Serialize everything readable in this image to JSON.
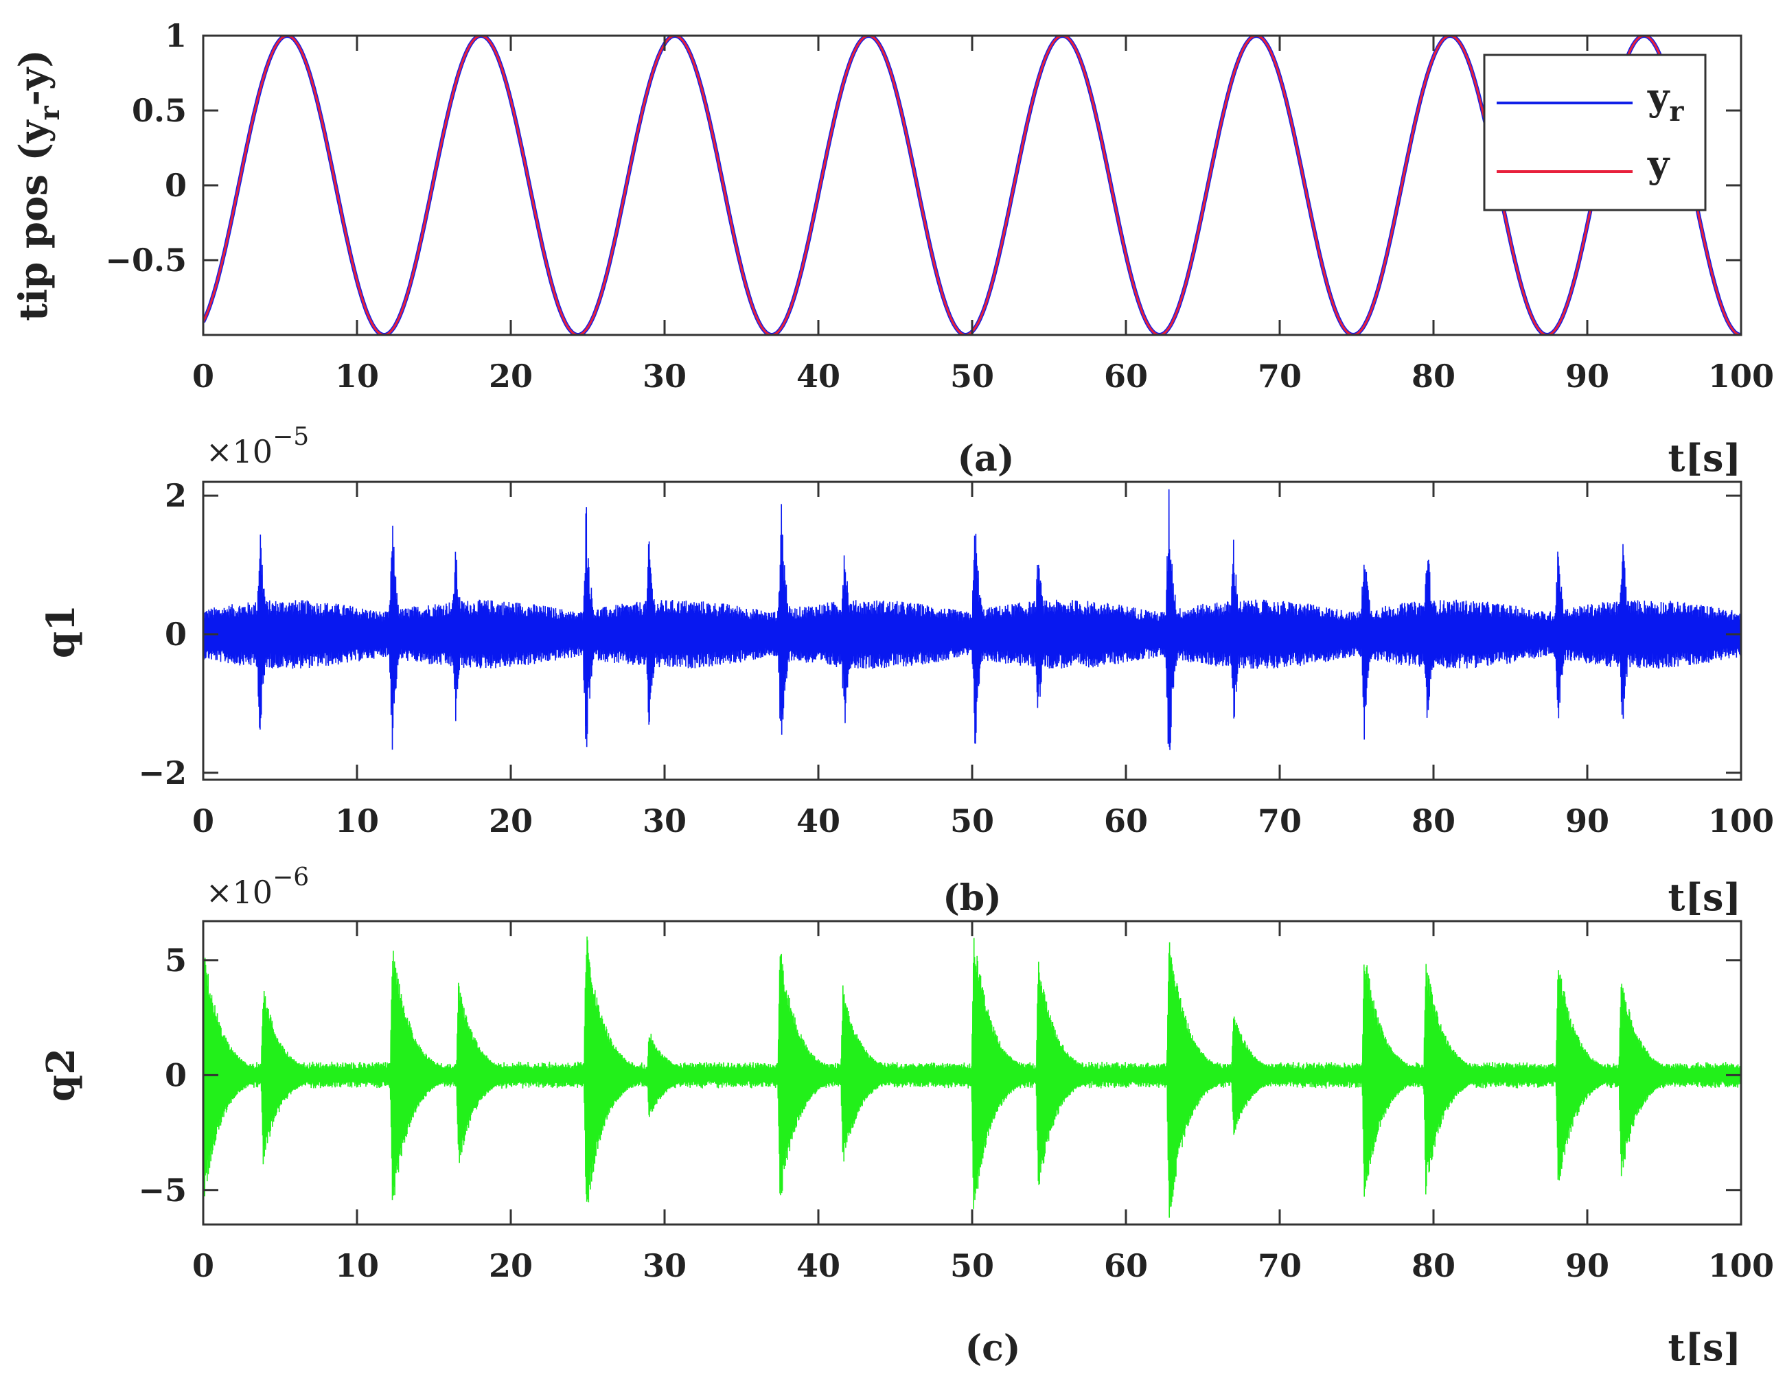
{
  "colors": {
    "reference_line": "#1020e8",
    "output_line": "#e8203c",
    "q1_line": "#0818f0",
    "q2_line": "#22f01a",
    "axis": "#333333"
  },
  "chart_data": [
    {
      "id": "a",
      "type": "line",
      "caption": "(a)",
      "xlabel": "t[s]",
      "ylabel_main": "tip pos (y",
      "ylabel_sub": "r",
      "ylabel_tail": "-y)",
      "multiplier": null,
      "xlim": [
        0,
        100
      ],
      "ylim": [
        -1,
        1
      ],
      "xticks": [
        0,
        10,
        20,
        30,
        40,
        50,
        60,
        70,
        80,
        90,
        100
      ],
      "yticks": [
        1,
        0.5,
        0,
        -0.5
      ],
      "ytick_labels": [
        "1",
        "0.5",
        "0",
        "−0.5"
      ],
      "grid": false,
      "legend_position": "top-right",
      "series": [
        {
          "name": "y",
          "subscript": "r",
          "color": "#1020e8",
          "formula": "y_r(t) = -cos(0.4985 t + 0.42)",
          "amplitude": 1,
          "angular_frequency": 0.4985,
          "phase": 0.42,
          "x_step": 0.1
        },
        {
          "name": "y",
          "subscript": "",
          "color": "#e8203c",
          "formula": "y(t) = -cos(0.4985 t + 0.42), tracks y_r",
          "amplitude": 1,
          "angular_frequency": 0.4985,
          "phase": 0.42,
          "x_step": 0.1
        }
      ]
    },
    {
      "id": "b",
      "type": "line",
      "caption": "(b)",
      "xlabel": "t[s]",
      "ylabel_main": "q1",
      "multiplier": "×10",
      "multiplier_exp": "−5",
      "xlim": [
        0,
        100
      ],
      "ylim": [
        -2.1,
        2.2
      ],
      "xticks": [
        0,
        10,
        20,
        30,
        40,
        50,
        60,
        70,
        80,
        90,
        100
      ],
      "yticks": [
        2,
        0,
        -2
      ],
      "ytick_labels": [
        "2",
        "0",
        "−2"
      ],
      "grid": false,
      "series": [
        {
          "name": "q1",
          "color": "#0818f0",
          "description": "noisy oscillation, baseline amplitude about 0.5, spikes near peaks of the tip motion",
          "baseline_amplitude": 0.5,
          "spikes_t": [
            3.7,
            12.3,
            16.4,
            24.9,
            29.0,
            37.6,
            41.7,
            50.2,
            54.3,
            62.8,
            67.0,
            75.5,
            79.6,
            88.1,
            92.3
          ],
          "spikes_amp": [
            1.75,
            1.75,
            1.4,
            2.05,
            1.55,
            2.15,
            1.5,
            1.8,
            1.35,
            2.2,
            1.5,
            1.6,
            1.55,
            1.5,
            1.6
          ]
        }
      ]
    },
    {
      "id": "c",
      "type": "line",
      "caption": "(c)",
      "xlabel": "t[s]",
      "ylabel_main": "q2",
      "multiplier": "×10",
      "multiplier_exp": "−6",
      "xlim": [
        0,
        100
      ],
      "ylim": [
        -6.5,
        6.7
      ],
      "xticks": [
        0,
        10,
        20,
        30,
        40,
        50,
        60,
        70,
        80,
        90,
        100
      ],
      "yticks": [
        5,
        0,
        -5
      ],
      "ytick_labels": [
        "5",
        "0",
        "−5"
      ],
      "grid": false,
      "series": [
        {
          "name": "q2",
          "color": "#22f01a",
          "description": "oscillation with decaying envelopes, bursts near peaks of the tip motion, baseline about 0.6",
          "baseline_amplitude": 0.6,
          "bursts_t": [
            0.0,
            3.9,
            12.3,
            16.6,
            24.9,
            29.0,
            37.5,
            41.6,
            50.1,
            54.3,
            62.8,
            67.0,
            75.5,
            79.5,
            88.1,
            92.2
          ],
          "bursts_amp": [
            5.9,
            3.9,
            6.0,
            4.1,
            6.4,
            2.0,
            5.8,
            4.0,
            6.4,
            5.2,
            6.6,
            2.8,
            5.6,
            5.2,
            5.2,
            4.6
          ]
        }
      ]
    }
  ]
}
